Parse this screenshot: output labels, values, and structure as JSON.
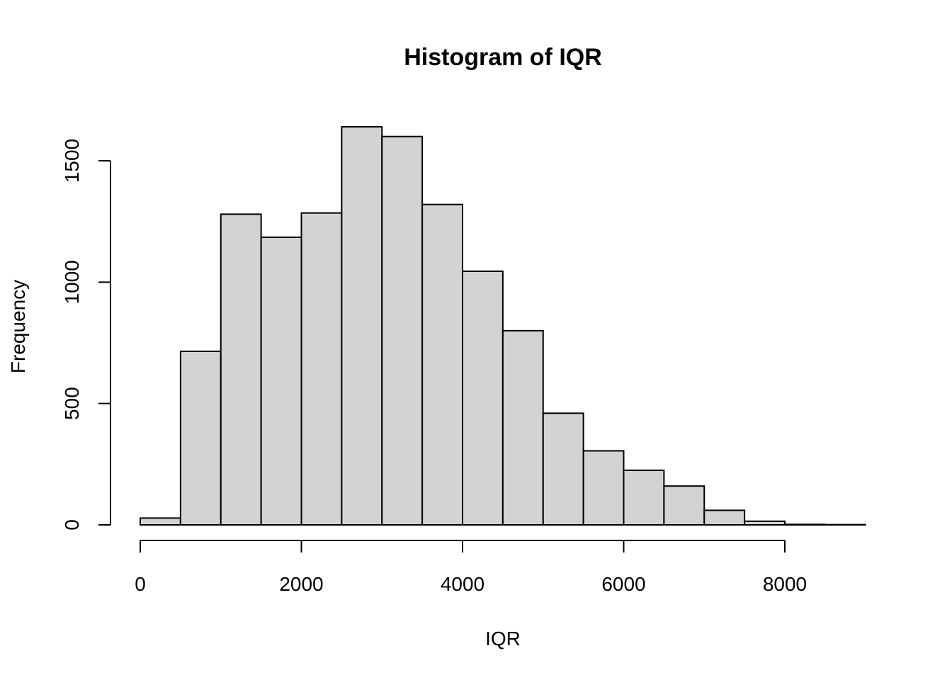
{
  "chart_data": {
    "type": "bar",
    "title": "Histogram of IQR",
    "xlabel": "IQR",
    "ylabel": "Frequency",
    "bin_edges": [
      0,
      500,
      1000,
      1500,
      2000,
      2500,
      3000,
      3500,
      4000,
      4500,
      5000,
      5500,
      6000,
      6500,
      7000,
      7500,
      8000,
      8500,
      9000
    ],
    "values": [
      28,
      715,
      1280,
      1185,
      1285,
      1640,
      1600,
      1320,
      1045,
      800,
      460,
      305,
      225,
      160,
      60,
      15,
      2,
      1
    ],
    "xlim": [
      0,
      9000
    ],
    "ylim": [
      0,
      1650
    ],
    "x_ticks": [
      0,
      2000,
      4000,
      6000,
      8000
    ],
    "x_tick_labels": [
      "0",
      "2000",
      "4000",
      "6000",
      "8000"
    ],
    "y_ticks": [
      0,
      500,
      1000,
      1500
    ],
    "y_tick_labels": [
      "0",
      "500",
      "1000",
      "1500"
    ],
    "bar_fill": "#d3d3d3",
    "bar_stroke": "#000000",
    "grid": false,
    "legend": "none"
  }
}
